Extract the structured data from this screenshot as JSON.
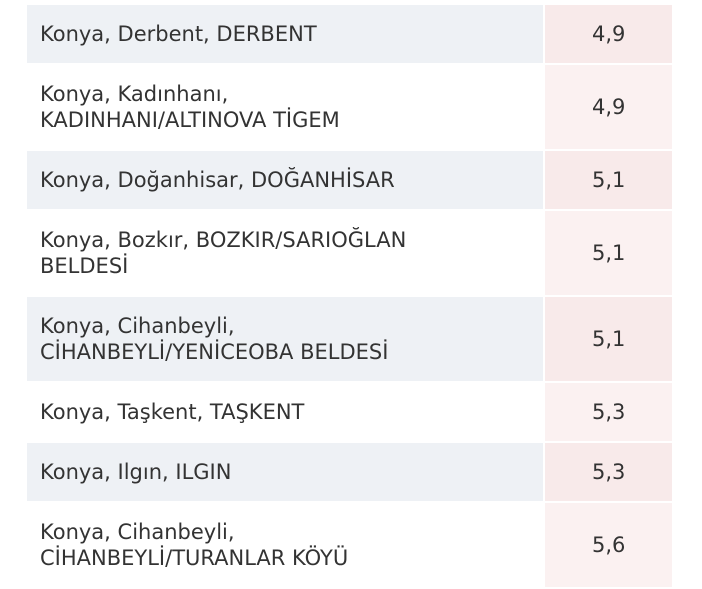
{
  "table": {
    "rows": [
      {
        "place": [
          "Konya, Derbent, DERBENT"
        ],
        "value": "4,9"
      },
      {
        "place": [
          "Konya, Kadınhanı,",
          "KADINHANI/ALTINOVA TİGEM"
        ],
        "value": "4,9"
      },
      {
        "place": [
          "Konya, Doğanhisar, DOĞANHİSAR"
        ],
        "value": "5,1"
      },
      {
        "place": [
          "Konya, Bozkır, BOZKIR/SARIOĞLAN",
          "BELDESİ"
        ],
        "value": "5,1"
      },
      {
        "place": [
          "Konya, Cihanbeyli,",
          "CİHANBEYLİ/YENİCEOBA BELDESİ"
        ],
        "value": "5,1"
      },
      {
        "place": [
          "Konya, Taşkent, TAŞKENT"
        ],
        "value": "5,3"
      },
      {
        "place": [
          "Konya, Ilgın, ILGIN"
        ],
        "value": "5,3"
      },
      {
        "place": [
          "Konya, Cihanbeyli,",
          "CİHANBEYLİ/TURANLAR KÖYÜ"
        ],
        "value": "5,6"
      }
    ]
  }
}
